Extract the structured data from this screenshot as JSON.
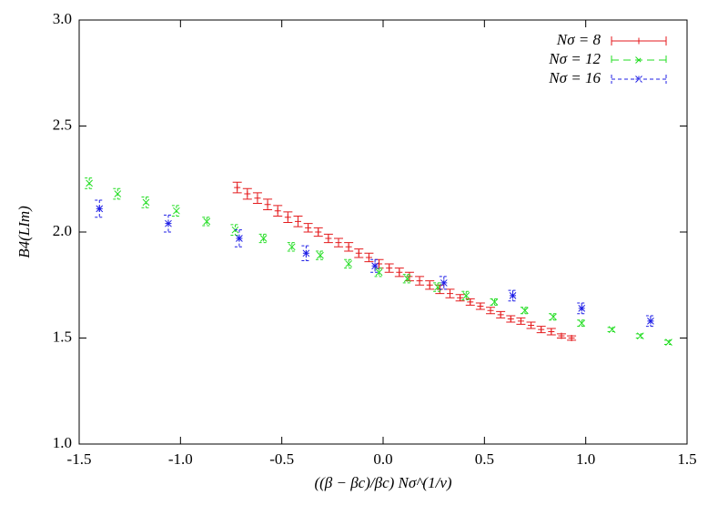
{
  "chart_data": {
    "type": "scatter",
    "xlabel": "((β − βc)/βc) Nσ^(1/ν)",
    "ylabel": "B4(LIm)",
    "xlim": [
      -1.5,
      1.5
    ],
    "ylim": [
      1.0,
      3.0
    ],
    "xticks": [
      -1.5,
      {
        "value": -1.0,
        "label": "-1.0"
      },
      -0.5,
      {
        "value": 0.0,
        "label": "0.0"
      },
      0.5,
      {
        "value": 1.0,
        "label": "1.0"
      },
      1.5
    ],
    "yticks": [
      {
        "value": 1.0,
        "label": "1.0"
      },
      1.5,
      {
        "value": 2.0,
        "label": "2.0"
      },
      2.5,
      {
        "value": 3.0,
        "label": "3.0"
      }
    ],
    "legend": "top-right",
    "series": [
      {
        "name": "Nσ = 8",
        "color": "#e41a1c",
        "marker": "plus",
        "dash": "solid",
        "x": [
          -0.72,
          -0.67,
          -0.62,
          -0.57,
          -0.52,
          -0.47,
          -0.42,
          -0.37,
          -0.32,
          -0.27,
          -0.22,
          -0.17,
          -0.12,
          -0.07,
          -0.02,
          0.03,
          0.08,
          0.13,
          0.18,
          0.23,
          0.28,
          0.33,
          0.38,
          0.43,
          0.48,
          0.53,
          0.58,
          0.63,
          0.68,
          0.73,
          0.78,
          0.83,
          0.88,
          0.93
        ],
        "values": [
          2.21,
          2.18,
          2.16,
          2.13,
          2.1,
          2.07,
          2.05,
          2.02,
          2.0,
          1.97,
          1.95,
          1.93,
          1.9,
          1.88,
          1.85,
          1.83,
          1.81,
          1.79,
          1.77,
          1.75,
          1.73,
          1.71,
          1.69,
          1.67,
          1.65,
          1.63,
          1.61,
          1.59,
          1.58,
          1.56,
          1.54,
          1.53,
          1.51,
          1.5
        ],
        "errors": [
          0.025,
          0.025,
          0.025,
          0.025,
          0.025,
          0.025,
          0.025,
          0.02,
          0.02,
          0.02,
          0.02,
          0.02,
          0.02,
          0.02,
          0.02,
          0.02,
          0.02,
          0.02,
          0.02,
          0.02,
          0.02,
          0.02,
          0.015,
          0.015,
          0.015,
          0.015,
          0.015,
          0.015,
          0.015,
          0.015,
          0.015,
          0.015,
          0.01,
          0.01
        ]
      },
      {
        "name": "Nσ = 12",
        "color": "#22dd22",
        "marker": "cross",
        "dash": "8,5",
        "x": [
          -1.45,
          -1.31,
          -1.17,
          -1.02,
          -0.87,
          -0.73,
          -0.59,
          -0.45,
          -0.31,
          -0.17,
          -0.02,
          0.12,
          0.27,
          0.41,
          0.55,
          0.7,
          0.84,
          0.98,
          1.13,
          1.27,
          1.41
        ],
        "values": [
          2.23,
          2.18,
          2.14,
          2.1,
          2.05,
          2.01,
          1.97,
          1.93,
          1.89,
          1.85,
          1.81,
          1.78,
          1.74,
          1.7,
          1.67,
          1.63,
          1.6,
          1.57,
          1.54,
          1.51,
          1.48
        ],
        "errors": [
          0.025,
          0.025,
          0.025,
          0.025,
          0.02,
          0.025,
          0.02,
          0.02,
          0.02,
          0.02,
          0.02,
          0.02,
          0.02,
          0.02,
          0.015,
          0.015,
          0.015,
          0.015,
          0.01,
          0.01,
          0.01
        ]
      },
      {
        "name": "Nσ = 16",
        "color": "#1f1fe6",
        "marker": "star",
        "dash": "4,3",
        "x": [
          -1.4,
          -1.06,
          -0.71,
          -0.38,
          -0.04,
          0.3,
          0.64,
          0.98,
          1.32
        ],
        "values": [
          2.11,
          2.04,
          1.97,
          1.9,
          1.84,
          1.76,
          1.7,
          1.64,
          1.58
        ],
        "errors": [
          0.04,
          0.04,
          0.04,
          0.035,
          0.03,
          0.03,
          0.025,
          0.025,
          0.025
        ]
      }
    ]
  }
}
